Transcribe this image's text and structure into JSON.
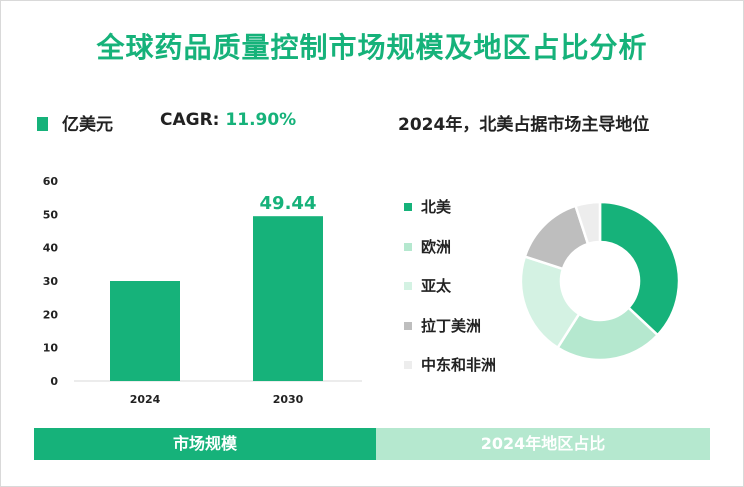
{
  "title": "全球药品质量控制市场规模及地区占比分析",
  "legend": {
    "label": "亿美元",
    "color": "#16b27a"
  },
  "cagr": {
    "label": "CAGR:",
    "value": "11.90%"
  },
  "pie_title": "2024年，北美占据市场主导地位",
  "footers": {
    "left": "市场规模",
    "right": "2024年地区占比"
  },
  "chart_data": [
    {
      "type": "bar",
      "title": "",
      "categories": [
        "2024",
        "2030"
      ],
      "values": [
        30,
        49.44
      ],
      "value_labels": [
        "",
        "49.44"
      ],
      "yticks": [
        "0",
        "10",
        "20",
        "30",
        "40",
        "50",
        "60"
      ],
      "ylim": [
        0,
        60
      ],
      "color": "#16b27a",
      "xlabel": "",
      "ylabel": ""
    },
    {
      "type": "pie",
      "labels": [
        "北美",
        "欧洲",
        "亚太",
        "拉丁美洲",
        "中东和非洲"
      ],
      "values": [
        37,
        22,
        21,
        15,
        5
      ],
      "colors": [
        "#16b27a",
        "#b5e8cf",
        "#d4f2e3",
        "#bebebe",
        "#ededed"
      ]
    }
  ]
}
